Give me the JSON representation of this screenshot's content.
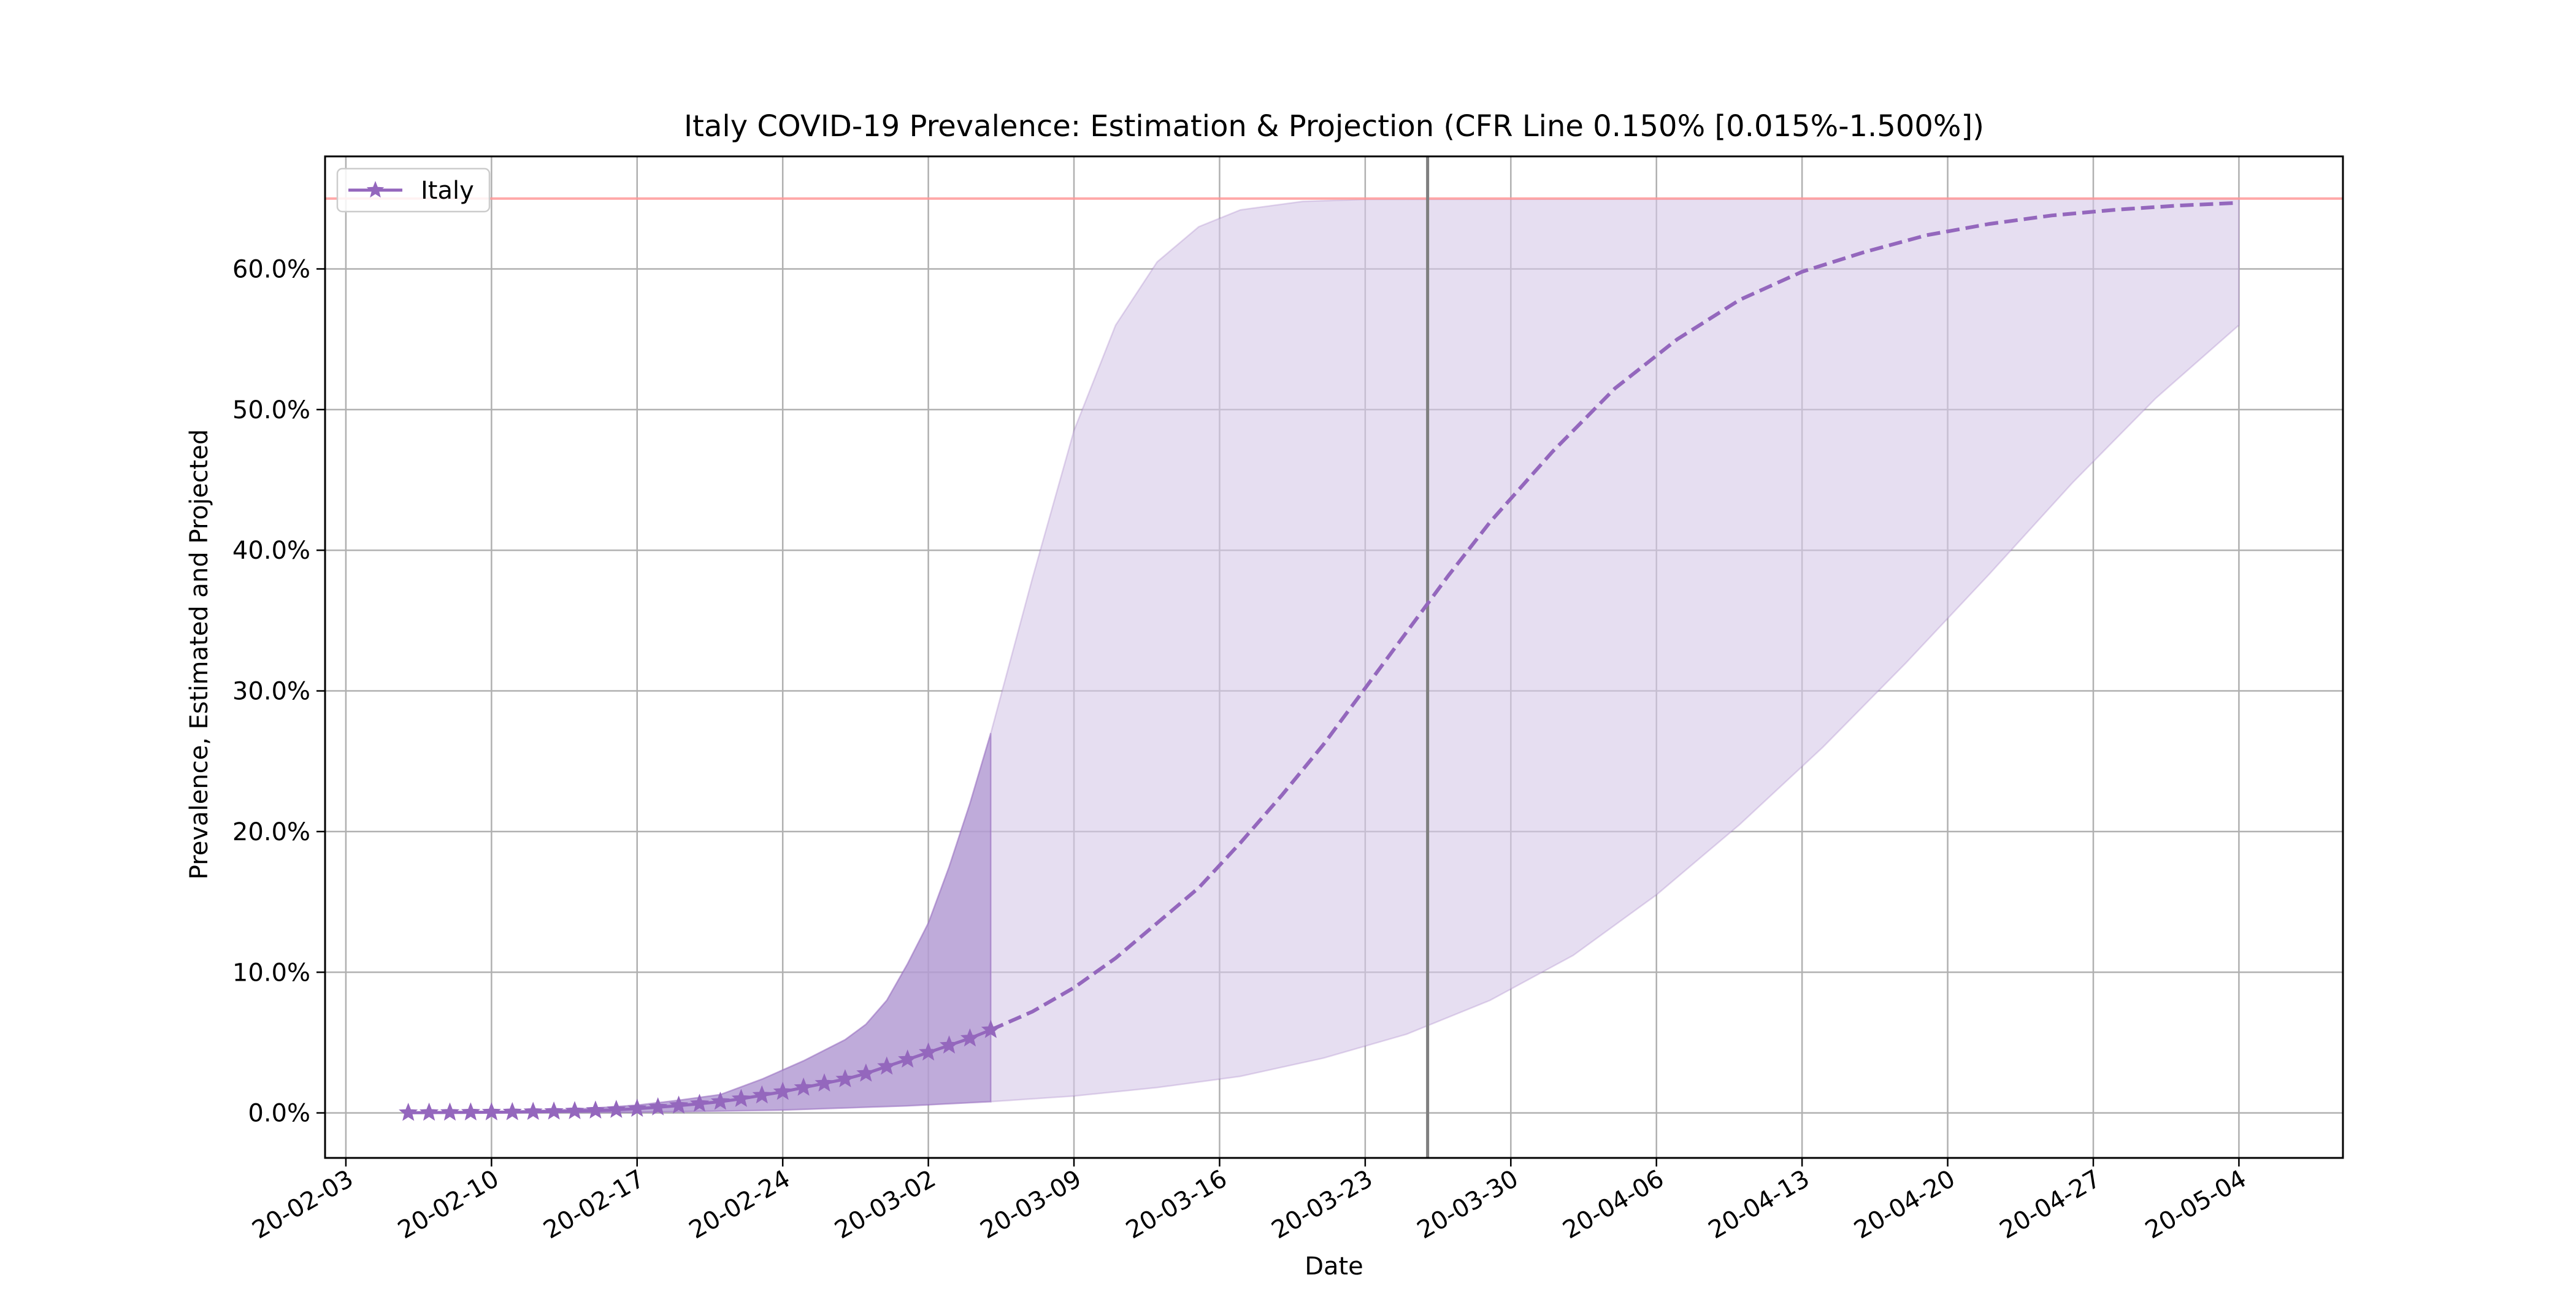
{
  "chart_data": {
    "type": "line",
    "title": "Italy COVID-19 Prevalence: Estimation & Projection (CFR Line 0.150% [0.015%-1.500%])",
    "xlabel": "Date",
    "ylabel": "Prevalence, Estimated and Projected",
    "x_ticks": [
      "20-02-03",
      "20-02-10",
      "20-02-17",
      "20-02-24",
      "20-03-02",
      "20-03-09",
      "20-03-16",
      "20-03-23",
      "20-03-30",
      "20-04-06",
      "20-04-13",
      "20-04-20",
      "20-04-27",
      "20-05-04"
    ],
    "y_ticks": [
      0,
      10,
      20,
      30,
      40,
      50,
      60
    ],
    "y_tick_labels": [
      "0.0%",
      "10.0%",
      "20.0%",
      "30.0%",
      "40.0%",
      "50.0%",
      "60.0%"
    ],
    "xlim": [
      "2020-02-02",
      "2020-05-09"
    ],
    "ylim": [
      -3.2,
      68
    ],
    "grid": true,
    "legend": {
      "position": "top-left",
      "entries": [
        "Italy"
      ]
    },
    "colors": {
      "series": "#9467bd",
      "band_light": "#d6c8e8",
      "band_dark": "#b49cd3",
      "cap_line": "#ff9999",
      "today_line": "#7f7f7f",
      "grid": "#b0b0b0"
    },
    "cap_line_y": 65,
    "today_marker_x": "2020-03-26",
    "series": [
      {
        "name": "Italy",
        "style": "solid-star",
        "points": [
          [
            "2020-02-06",
            0.01
          ],
          [
            "2020-02-07",
            0.02
          ],
          [
            "2020-02-08",
            0.03
          ],
          [
            "2020-02-09",
            0.04
          ],
          [
            "2020-02-10",
            0.05
          ],
          [
            "2020-02-11",
            0.06
          ],
          [
            "2020-02-12",
            0.08
          ],
          [
            "2020-02-13",
            0.1
          ],
          [
            "2020-02-14",
            0.13
          ],
          [
            "2020-02-15",
            0.17
          ],
          [
            "2020-02-16",
            0.22
          ],
          [
            "2020-02-17",
            0.3
          ],
          [
            "2020-02-18",
            0.4
          ],
          [
            "2020-02-19",
            0.52
          ],
          [
            "2020-02-20",
            0.65
          ],
          [
            "2020-02-21",
            0.8
          ],
          [
            "2020-02-22",
            1.0
          ],
          [
            "2020-02-23",
            1.25
          ],
          [
            "2020-02-24",
            1.5
          ],
          [
            "2020-02-25",
            1.8
          ],
          [
            "2020-02-26",
            2.1
          ],
          [
            "2020-02-27",
            2.4
          ],
          [
            "2020-02-28",
            2.8
          ],
          [
            "2020-02-29",
            3.3
          ],
          [
            "2020-03-01",
            3.8
          ],
          [
            "2020-03-02",
            4.3
          ],
          [
            "2020-03-03",
            4.8
          ],
          [
            "2020-03-04",
            5.3
          ],
          [
            "2020-03-05",
            5.9
          ]
        ]
      },
      {
        "name": "Italy projection",
        "style": "dashed",
        "points": [
          [
            "2020-03-05",
            5.9
          ],
          [
            "2020-03-07",
            7.2
          ],
          [
            "2020-03-09",
            8.9
          ],
          [
            "2020-03-11",
            11.0
          ],
          [
            "2020-03-13",
            13.5
          ],
          [
            "2020-03-15",
            16.0
          ],
          [
            "2020-03-17",
            19.2
          ],
          [
            "2020-03-19",
            22.6
          ],
          [
            "2020-03-21",
            26.2
          ],
          [
            "2020-03-23",
            30.2
          ],
          [
            "2020-03-25",
            34.2
          ],
          [
            "2020-03-27",
            38.2
          ],
          [
            "2020-03-29",
            42.0
          ],
          [
            "2020-04-01",
            47.0
          ],
          [
            "2020-04-04",
            51.5
          ],
          [
            "2020-04-07",
            55.0
          ],
          [
            "2020-04-10",
            57.8
          ],
          [
            "2020-04-13",
            59.8
          ],
          [
            "2020-04-16",
            61.2
          ],
          [
            "2020-04-19",
            62.4
          ],
          [
            "2020-04-22",
            63.2
          ],
          [
            "2020-04-25",
            63.8
          ],
          [
            "2020-04-28",
            64.2
          ],
          [
            "2020-05-01",
            64.5
          ],
          [
            "2020-05-04",
            64.7
          ]
        ]
      }
    ],
    "bands": [
      {
        "name": "estimation band",
        "shade": "dark",
        "upper": [
          [
            "2020-02-06",
            0.02
          ],
          [
            "2020-02-10",
            0.08
          ],
          [
            "2020-02-14",
            0.25
          ],
          [
            "2020-02-17",
            0.55
          ],
          [
            "2020-02-19",
            0.9
          ],
          [
            "2020-02-21",
            1.3
          ],
          [
            "2020-02-23",
            2.4
          ],
          [
            "2020-02-25",
            3.7
          ],
          [
            "2020-02-27",
            5.2
          ],
          [
            "2020-02-28",
            6.3
          ],
          [
            "2020-02-29",
            8.0
          ],
          [
            "2020-03-01",
            10.6
          ],
          [
            "2020-03-02",
            13.5
          ],
          [
            "2020-03-03",
            17.5
          ],
          [
            "2020-03-04",
            22.0
          ],
          [
            "2020-03-05",
            27.0
          ]
        ],
        "lower": [
          [
            "2020-02-06",
            0.0
          ],
          [
            "2020-02-17",
            0.05
          ],
          [
            "2020-02-24",
            0.2
          ],
          [
            "2020-03-01",
            0.5
          ],
          [
            "2020-03-05",
            0.8
          ]
        ]
      },
      {
        "name": "projection band",
        "shade": "light",
        "upper": [
          [
            "2020-03-05",
            27.0
          ],
          [
            "2020-03-07",
            38.0
          ],
          [
            "2020-03-09",
            48.5
          ],
          [
            "2020-03-11",
            56.0
          ],
          [
            "2020-03-13",
            60.5
          ],
          [
            "2020-03-15",
            63.0
          ],
          [
            "2020-03-17",
            64.2
          ],
          [
            "2020-03-20",
            64.8
          ],
          [
            "2020-03-23",
            64.95
          ],
          [
            "2020-05-04",
            65.0
          ]
        ],
        "lower": [
          [
            "2020-03-05",
            0.8
          ],
          [
            "2020-03-09",
            1.2
          ],
          [
            "2020-03-13",
            1.8
          ],
          [
            "2020-03-17",
            2.6
          ],
          [
            "2020-03-21",
            3.9
          ],
          [
            "2020-03-25",
            5.6
          ],
          [
            "2020-03-29",
            8.0
          ],
          [
            "2020-04-02",
            11.2
          ],
          [
            "2020-04-06",
            15.5
          ],
          [
            "2020-04-10",
            20.5
          ],
          [
            "2020-04-14",
            26.0
          ],
          [
            "2020-04-18",
            32.0
          ],
          [
            "2020-04-22",
            38.3
          ],
          [
            "2020-04-26",
            44.8
          ],
          [
            "2020-04-30",
            50.8
          ],
          [
            "2020-05-04",
            56.0
          ]
        ]
      }
    ]
  }
}
